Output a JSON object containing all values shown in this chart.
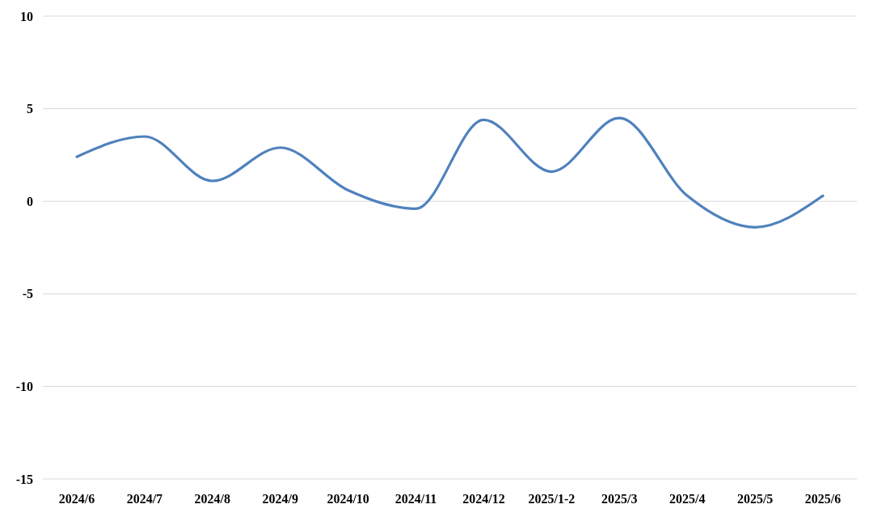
{
  "chart_data": {
    "type": "line",
    "categories": [
      "2024/6",
      "2024/7",
      "2024/8",
      "2024/9",
      "2024/10",
      "2024/11",
      "2024/12",
      "2025/1-2",
      "2025/3",
      "2025/4",
      "2025/5",
      "2025/6"
    ],
    "series": [
      {
        "color": "#4f81bd",
        "values": [
          2.4,
          3.5,
          1.1,
          2.9,
          0.6,
          -0.4,
          4.4,
          1.6,
          4.5,
          0.3,
          -1.4,
          0.3
        ]
      }
    ],
    "ylim": [
      -15,
      10
    ],
    "yticks": [
      -15,
      -10,
      -5,
      0,
      5,
      10
    ],
    "grid": "y",
    "marker": "none",
    "line_style": "solid"
  }
}
